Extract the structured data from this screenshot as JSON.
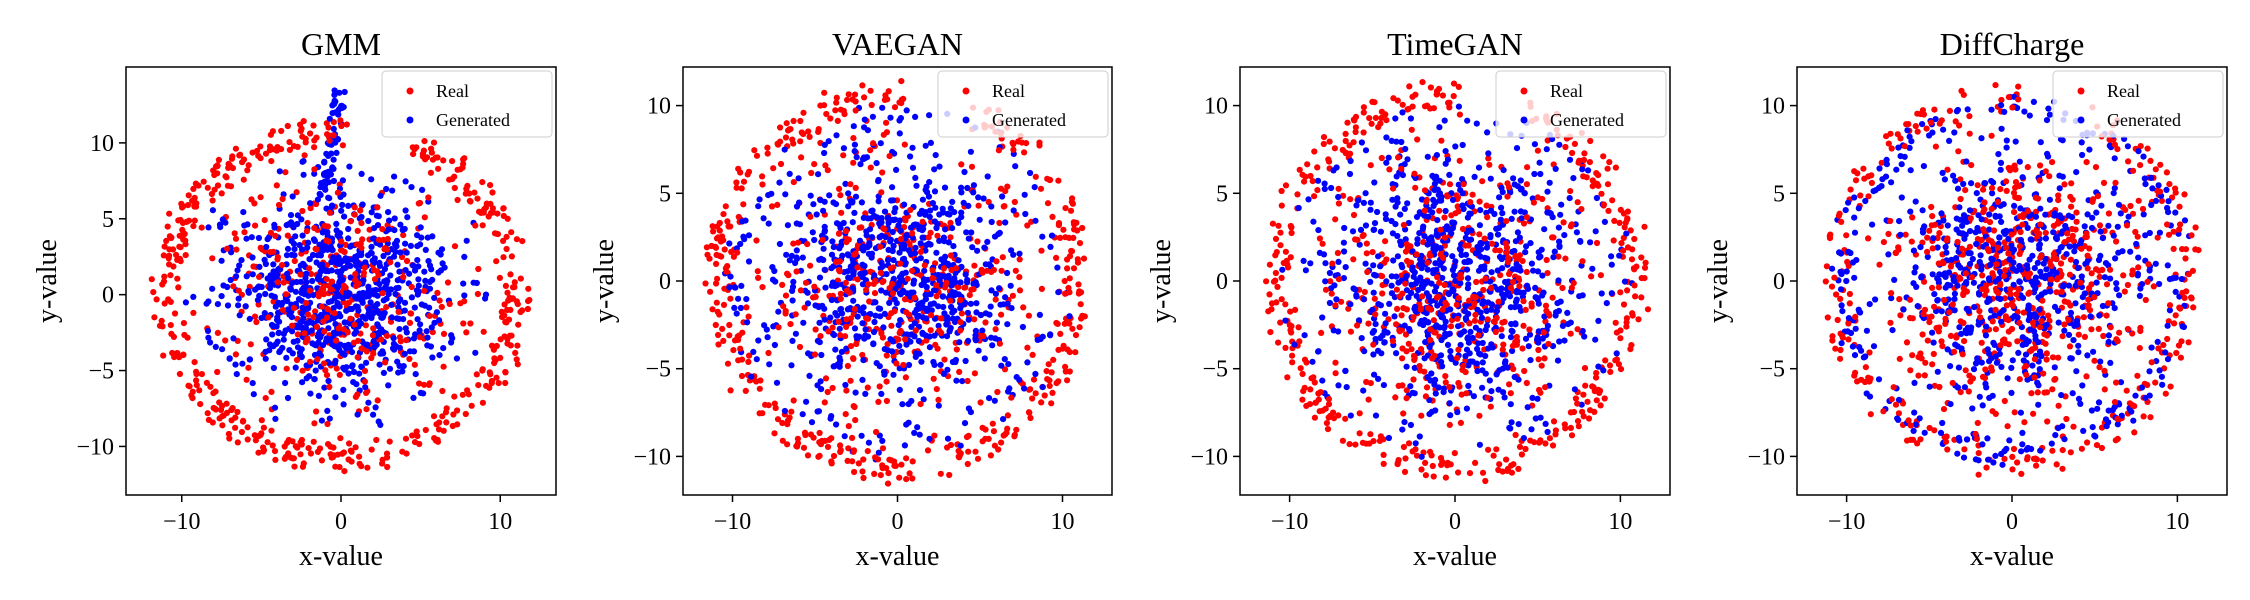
{
  "figure": {
    "xlabel": "x-value",
    "ylabel": "y-value",
    "legend": [
      {
        "label": "Real",
        "color": "#ff0000"
      },
      {
        "label": "Generated",
        "color": "#0000ff"
      }
    ]
  },
  "chart_data": [
    {
      "type": "scatter",
      "title": "GMM",
      "xlabel": "x-value",
      "ylabel": "y-value",
      "xlim": [
        -13.5,
        13.5
      ],
      "ylim": [
        -13.2,
        15.0
      ],
      "xticks": [
        -10,
        0,
        10
      ],
      "xtick_labels": [
        "−10",
        "0",
        "10"
      ],
      "yticks": [
        -10,
        -5,
        0,
        5,
        10
      ],
      "ytick_labels": [
        "−10",
        "−5",
        "0",
        "5",
        "10"
      ],
      "legend_position": "top-right",
      "series": [
        {
          "name": "Real",
          "color": "#ff0000",
          "point_count": 800,
          "description": "t-SNE embedding, roughly circular cloud radius ~11.5 with dense outer arcs"
        },
        {
          "name": "Generated",
          "color": "#0000ff",
          "point_count": 800,
          "description": "t-SNE embedding concentrated in interior, radius ~9.5, with a strand reaching up to (0, 13.5)"
        }
      ]
    },
    {
      "type": "scatter",
      "title": "VAEGAN",
      "xlabel": "x-value",
      "ylabel": "y-value",
      "xlim": [
        -13.0,
        13.0
      ],
      "ylim": [
        -12.2,
        12.2
      ],
      "xticks": [
        -10,
        0,
        10
      ],
      "xtick_labels": [
        "−10",
        "0",
        "10"
      ],
      "yticks": [
        -10,
        -5,
        0,
        5,
        10
      ],
      "ytick_labels": [
        "−10",
        "−5",
        "0",
        "5",
        "10"
      ],
      "legend_position": "top-right",
      "series": [
        {
          "name": "Real",
          "color": "#ff0000",
          "point_count": 800,
          "description": "t-SNE embedding, circular cloud radius ~11.5 with outer arcs"
        },
        {
          "name": "Generated",
          "color": "#0000ff",
          "point_count": 800,
          "description": "t-SNE embedding spread across interior, radius ~10.5"
        }
      ]
    },
    {
      "type": "scatter",
      "title": "TimeGAN",
      "xlabel": "x-value",
      "ylabel": "y-value",
      "xlim": [
        -13.0,
        13.0
      ],
      "ylim": [
        -12.2,
        12.2
      ],
      "xticks": [
        -10,
        0,
        10
      ],
      "xtick_labels": [
        "−10",
        "0",
        "10"
      ],
      "yticks": [
        -10,
        -5,
        0,
        5,
        10
      ],
      "ytick_labels": [
        "−10",
        "−5",
        "0",
        "5",
        "10"
      ],
      "legend_position": "top-right",
      "series": [
        {
          "name": "Real",
          "color": "#ff0000",
          "point_count": 800,
          "description": "t-SNE embedding, circular cloud radius ~11.5 with outer arcs"
        },
        {
          "name": "Generated",
          "color": "#0000ff",
          "point_count": 800,
          "description": "t-SNE embedding spread across interior, radius ~10.5"
        }
      ]
    },
    {
      "type": "scatter",
      "title": "DiffCharge",
      "xlabel": "x-value",
      "ylabel": "y-value",
      "xlim": [
        -13.0,
        13.0
      ],
      "ylim": [
        -12.2,
        12.2
      ],
      "xticks": [
        -10,
        0,
        10
      ],
      "xtick_labels": [
        "−10",
        "0",
        "10"
      ],
      "yticks": [
        -10,
        -5,
        0,
        5,
        10
      ],
      "ytick_labels": [
        "−10",
        "−5",
        "0",
        "5",
        "10"
      ],
      "legend_position": "top-right",
      "series": [
        {
          "name": "Real",
          "color": "#ff0000",
          "point_count": 800,
          "description": "t-SNE embedding, circular cloud radius ~11.5"
        },
        {
          "name": "Generated",
          "color": "#0000ff",
          "point_count": 800,
          "description": "t-SNE embedding closely overlapping real cloud, radius ~11"
        }
      ]
    }
  ]
}
